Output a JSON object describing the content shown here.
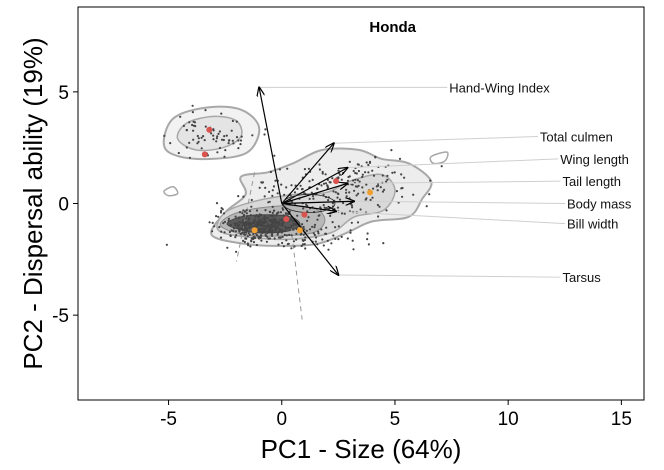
{
  "chart_data": {
    "type": "scatter",
    "title": "Honda",
    "xlabel": "PC1 - Size (64%)",
    "ylabel": "PC2 - Dispersal ability (19%)",
    "xlim": [
      -9,
      16
    ],
    "ylim": [
      -8.8,
      8.8
    ],
    "x_ticks": [
      -5,
      0,
      5,
      10,
      15
    ],
    "y_ticks": [
      -5,
      0,
      5
    ],
    "grid": false,
    "colors": {
      "points": "#444444",
      "contour_outer": "#a8a8a8",
      "density_core": "#5a5a5a",
      "red_points": "#d9534f",
      "orange_points": "#f0a030",
      "vector": "#000000",
      "leader": "#cfcfcf"
    },
    "vectors": [
      {
        "name": "Hand-Wing Index",
        "x": -1.0,
        "y": 5.2
      },
      {
        "name": "Total culmen",
        "x": 2.3,
        "y": 2.7
      },
      {
        "name": "Wing length",
        "x": 2.9,
        "y": 1.6
      },
      {
        "name": "Tail length",
        "x": 2.9,
        "y": 0.9
      },
      {
        "name": "Body mass",
        "x": 3.2,
        "y": 0.1
      },
      {
        "name": "Bill width",
        "x": 2.4,
        "y": -0.35
      },
      {
        "name": "Tarsus",
        "x": 2.5,
        "y": -3.2
      }
    ],
    "highlight_points": [
      {
        "x": -3.2,
        "y": 3.3,
        "color": "red"
      },
      {
        "x": -3.4,
        "y": 2.2,
        "color": "red"
      },
      {
        "x": 2.4,
        "y": 1.0,
        "color": "red"
      },
      {
        "x": 3.9,
        "y": 0.5,
        "color": "orange"
      },
      {
        "x": 1.0,
        "y": -0.5,
        "color": "red"
      },
      {
        "x": 0.2,
        "y": -0.7,
        "color": "red"
      },
      {
        "x": 0.8,
        "y": -1.2,
        "color": "orange"
      },
      {
        "x": -1.2,
        "y": -1.2,
        "color": "orange"
      }
    ]
  }
}
